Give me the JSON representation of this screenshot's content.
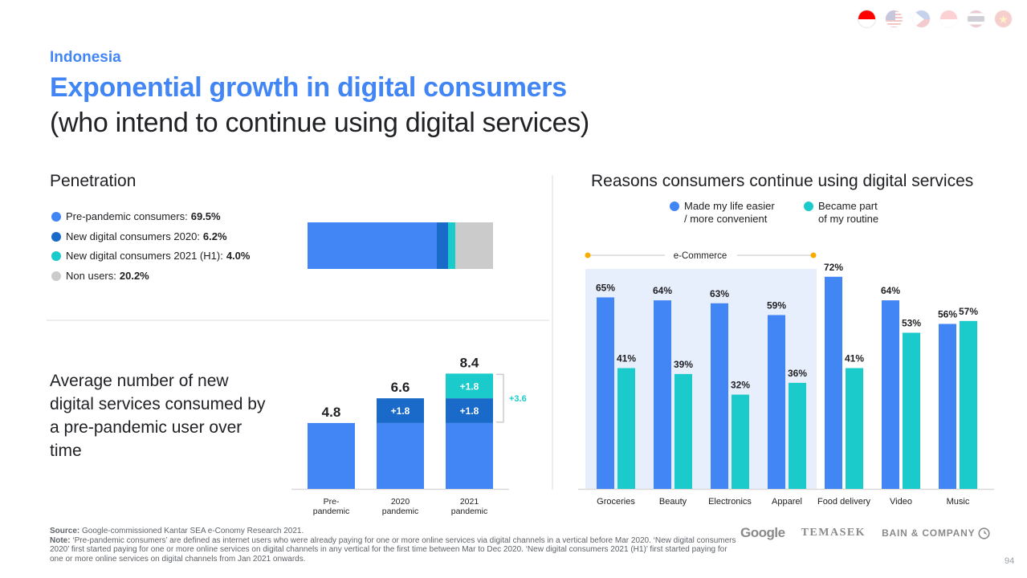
{
  "flags": [
    {
      "name": "indonesia",
      "active": true
    },
    {
      "name": "malaysia",
      "active": false
    },
    {
      "name": "philippines",
      "active": false
    },
    {
      "name": "singapore",
      "active": false
    },
    {
      "name": "thailand",
      "active": false
    },
    {
      "name": "vietnam",
      "active": false
    }
  ],
  "header": {
    "country": "Indonesia",
    "title": "Exponential growth in digital consumers",
    "subtitle": "(who intend to continue using digital services)"
  },
  "colors": {
    "blue": "#4285f4",
    "dark_blue": "#1a6ac9",
    "teal": "#1bcbcb",
    "grey": "#cbcbcb",
    "ecommerce_bg": "#e8effc",
    "orange": "#f9ab00"
  },
  "penetration": {
    "heading": "Penetration",
    "legend": [
      {
        "label": "Pre-pandemic consumers:",
        "value": "69.5%",
        "color": "#4285f4"
      },
      {
        "label": "New digital consumers 2020:",
        "value": "6.2%",
        "color": "#1a6ac9"
      },
      {
        "label": "New digital consumers 2021 (H1):",
        "value": "4.0%",
        "color": "#1bcbcb"
      },
      {
        "label": "Non users:",
        "value": "20.2%",
        "color": "#cbcbcb"
      }
    ]
  },
  "average": {
    "text": "Average number of new digital services consumed by a pre-pandemic user over time",
    "bracket_label": "+3.6"
  },
  "right": {
    "heading": "Reasons consumers continue using digital services",
    "legend": [
      {
        "label_line1": "Made my life easier",
        "label_line2": "/ more convenient",
        "color": "#4285f4"
      },
      {
        "label_line1": "Became part",
        "label_line2": "of my routine",
        "color": "#1bcbcb"
      }
    ],
    "group_label": "e-Commerce"
  },
  "chart_data": [
    {
      "type": "bar",
      "title": "Penetration",
      "orientation": "horizontal-stacked",
      "categories": [
        "Penetration"
      ],
      "series": [
        {
          "name": "Pre-pandemic consumers",
          "values": [
            69.5
          ]
        },
        {
          "name": "New digital consumers 2020",
          "values": [
            6.2
          ]
        },
        {
          "name": "New digital consumers 2021 (H1)",
          "values": [
            4.0
          ]
        },
        {
          "name": "Non users",
          "values": [
            20.2
          ]
        }
      ],
      "unit": "%"
    },
    {
      "type": "bar",
      "title": "Average number of new digital services consumed by a pre-pandemic user over time",
      "stacked": true,
      "categories": [
        [
          "Pre-",
          "pandemic"
        ],
        [
          "2020",
          "pandemic"
        ],
        [
          "2021",
          "pandemic"
        ]
      ],
      "series": [
        {
          "name": "Pre-pandemic base",
          "values": [
            4.8,
            4.8,
            4.8
          ]
        },
        {
          "name": "2020 increment",
          "values": [
            0,
            1.8,
            1.8
          ]
        },
        {
          "name": "2021 increment",
          "values": [
            0,
            0,
            1.8
          ]
        }
      ],
      "segment_labels": [
        [
          null,
          null,
          null
        ],
        [
          null,
          "+1.8",
          "+1.8"
        ],
        [
          null,
          null,
          "+1.8"
        ]
      ],
      "totals": [
        "4.8",
        "6.6",
        "8.4"
      ],
      "annotation": "+3.6",
      "ylim": [
        0,
        8.4
      ]
    },
    {
      "type": "bar",
      "title": "Reasons consumers continue using digital services",
      "categories": [
        "Groceries",
        "Beauty",
        "Electronics",
        "Apparel",
        "Food delivery",
        "Video",
        "Music"
      ],
      "series": [
        {
          "name": "Made my life easier / more convenient",
          "values": [
            65,
            64,
            63,
            59,
            72,
            64,
            56
          ]
        },
        {
          "name": "Became part of my routine",
          "values": [
            41,
            39,
            32,
            36,
            41,
            53,
            57
          ]
        }
      ],
      "group_bracket": {
        "label": "e-Commerce",
        "categories": [
          "Groceries",
          "Beauty",
          "Electronics",
          "Apparel"
        ]
      },
      "unit": "%",
      "ylim": [
        0,
        72
      ]
    }
  ],
  "footer": {
    "source_label": "Source:",
    "source_text": "Google-commissioned Kantar SEA e-Conomy Research 2021.",
    "note_label": "Note:",
    "note_text": "‘Pre-pandemic consumers’ are defined as internet users who were already paying for one or more online services via digital channels in a vertical before Mar 2020. ‘New digital consumers 2020’ first started paying for one or more online services on digital channels in any vertical for the first time between Mar to Dec 2020. ‘New digital consumers 2021 (H1)’ first started paying for one or more online services on digital channels from Jan 2021 onwards.",
    "logos": [
      "Google",
      "TEMASEK",
      "BAIN & COMPANY"
    ],
    "page_number": "94"
  }
}
